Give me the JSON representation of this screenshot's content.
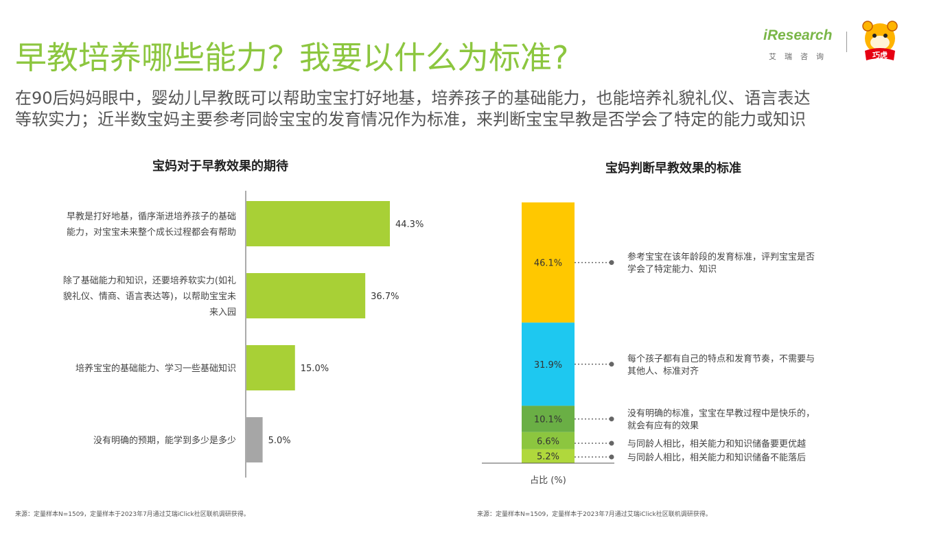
{
  "header": {
    "title": "早教培养哪些能力？我要以什么为标准?",
    "subtitle_line1": "在90后妈妈眼中，婴幼儿早教既可以帮助宝宝打好地基，培养孩子的基础能力，也能培养礼貌礼仪、语言表达",
    "subtitle_line2": "等软实力；近半数宝妈主要参考同龄宝宝的发育情况作为标准，来判断宝宝早教是否学会了特定的能力或知识"
  },
  "logo": {
    "brand": "iResearch",
    "brand_sub": "艾瑞咨询",
    "mascot_text": "巧虎"
  },
  "colors": {
    "title_green": "#8cc63f",
    "bar_green": "#a8d036",
    "bar_gray": "#a6a6a6",
    "yellow": "#ffc800",
    "cyan": "#1ec8f0",
    "dark_green": "#6aaf45",
    "mid_green": "#8cc63f",
    "light_green": "#b0d83c"
  },
  "chart_data": [
    {
      "type": "bar",
      "orientation": "horizontal",
      "title": "宝妈对于早教效果的期待",
      "categories": [
        "早教是打好地基，循序渐进培养孩子的基础能力，对宝宝未来整个成长过程都会有帮助",
        "除了基础能力和知识，还要培养软实力(如礼貌礼仪、情商、语言表达等)，以帮助宝宝未来入园",
        "培养宝宝的基础能力、学习一些基础知识",
        "没有明确的预期，能学到多少是多少"
      ],
      "category_lines": [
        [
          "早教是打好地基，循序渐进培养孩子的基础",
          "能力，对宝宝未来整个成长过程都会有帮助"
        ],
        [
          "除了基础能力和知识，还要培养软实力(如礼",
          "貌礼仪、情商、语言表达等)，以帮助宝宝未",
          "来入园"
        ],
        [
          "培养宝宝的基础能力、学习一些基础知识"
        ],
        [
          "没有明确的预期，能学到多少是多少"
        ]
      ],
      "values": [
        44.3,
        36.7,
        15.0,
        5.0
      ],
      "value_labels": [
        "44.3%",
        "36.7%",
        "15.0%",
        "5.0%"
      ],
      "bar_colors": [
        "#a8d036",
        "#a8d036",
        "#a8d036",
        "#a6a6a6"
      ],
      "xlim": [
        0,
        100
      ],
      "source": "来源：定量样本N=1509，定量样本于2023年7月通过艾瑞iClick社区联机调研获得。"
    },
    {
      "type": "bar",
      "orientation": "stacked-vertical",
      "title": "宝妈判断早教效果的标准",
      "xlabel": "占比 (%)",
      "series": [
        {
          "name": "参考宝宝在该年龄段的发育标准，评判宝宝是否学会了特定能力、知识",
          "lines": [
            "参考宝宝在该年龄段的发育标准，评判宝宝是否",
            "学会了特定能力、知识"
          ],
          "value": 46.1,
          "label": "46.1%",
          "color": "#ffc800"
        },
        {
          "name": "每个孩子都有自己的特点和发育节奏，不需要与其他人、标准对齐",
          "lines": [
            "每个孩子都有自己的特点和发育节奏，不需要与",
            "其他人、标准对齐"
          ],
          "value": 31.9,
          "label": "31.9%",
          "color": "#1ec8f0"
        },
        {
          "name": "没有明确的标准，宝宝在早教过程中是快乐的，就会有应有的效果",
          "lines": [
            "没有明确的标准，宝宝在早教过程中是快乐的，",
            "就会有应有的效果"
          ],
          "value": 10.1,
          "label": "10.1%",
          "color": "#6aaf45"
        },
        {
          "name": "与同龄人相比，相关能力和知识储备要更优越",
          "lines": [
            "与同龄人相比，相关能力和知识储备要更优越"
          ],
          "value": 6.6,
          "label": "6.6%",
          "color": "#8cc63f"
        },
        {
          "name": "与同龄人相比，相关能力和知识储备不能落后",
          "lines": [
            "与同龄人相比，相关能力和知识储备不能落后"
          ],
          "value": 5.2,
          "label": "5.2%",
          "color": "#b0d83c"
        }
      ],
      "source": "来源：定量样本N=1509，定量样本于2023年7月通过艾瑞iClick社区联机调研获得。"
    }
  ]
}
